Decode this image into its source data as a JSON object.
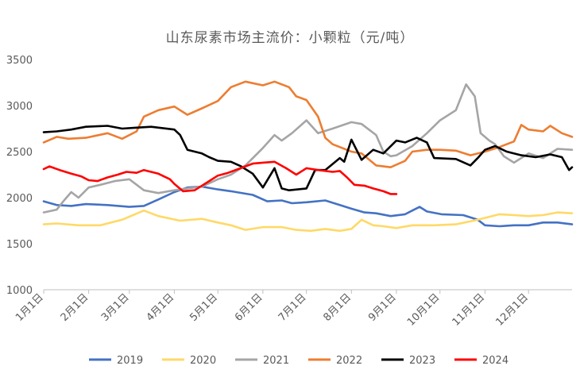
{
  "chart_data": {
    "type": "line",
    "title": "山东尿素市场主流价：小颗粒（元/吨）",
    "xlabel": "",
    "ylabel": "",
    "ylim": [
      1000,
      3500
    ],
    "yticks": [
      1000,
      1500,
      2000,
      2500,
      3000,
      3500
    ],
    "xlim": [
      1,
      365
    ],
    "x_ticks": [
      {
        "label": "1月1日",
        "day": 1
      },
      {
        "label": "2月1日",
        "day": 32
      },
      {
        "label": "3月1日",
        "day": 60
      },
      {
        "label": "4月1日",
        "day": 91
      },
      {
        "label": "5月1日",
        "day": 121
      },
      {
        "label": "6月1日",
        "day": 152
      },
      {
        "label": "7月1日",
        "day": 182
      },
      {
        "label": "8月1日",
        "day": 213
      },
      {
        "label": "9月1日",
        "day": 244
      },
      {
        "label": "10月1日",
        "day": 274
      },
      {
        "label": "11月1日",
        "day": 305
      },
      {
        "label": "12月1日",
        "day": 335
      }
    ],
    "grid": false,
    "legend_position": "bottom",
    "series": [
      {
        "name": "2019",
        "color": "#4472c4",
        "points": [
          [
            1,
            1960
          ],
          [
            10,
            1920
          ],
          [
            20,
            1910
          ],
          [
            30,
            1930
          ],
          [
            45,
            1920
          ],
          [
            60,
            1900
          ],
          [
            70,
            1910
          ],
          [
            80,
            1980
          ],
          [
            91,
            2060
          ],
          [
            100,
            2110
          ],
          [
            110,
            2120
          ],
          [
            121,
            2090
          ],
          [
            130,
            2070
          ],
          [
            145,
            2030
          ],
          [
            155,
            1960
          ],
          [
            165,
            1970
          ],
          [
            172,
            1940
          ],
          [
            182,
            1950
          ],
          [
            195,
            1970
          ],
          [
            205,
            1920
          ],
          [
            213,
            1880
          ],
          [
            222,
            1840
          ],
          [
            230,
            1830
          ],
          [
            240,
            1800
          ],
          [
            250,
            1820
          ],
          [
            255,
            1860
          ],
          [
            260,
            1900
          ],
          [
            265,
            1850
          ],
          [
            275,
            1820
          ],
          [
            290,
            1810
          ],
          [
            300,
            1760
          ],
          [
            305,
            1700
          ],
          [
            315,
            1690
          ],
          [
            325,
            1700
          ],
          [
            335,
            1700
          ],
          [
            345,
            1730
          ],
          [
            355,
            1730
          ],
          [
            365,
            1710
          ]
        ]
      },
      {
        "name": "2020",
        "color": "#ffd966",
        "points": [
          [
            1,
            1710
          ],
          [
            10,
            1720
          ],
          [
            25,
            1700
          ],
          [
            40,
            1700
          ],
          [
            55,
            1760
          ],
          [
            70,
            1860
          ],
          [
            80,
            1800
          ],
          [
            95,
            1750
          ],
          [
            110,
            1770
          ],
          [
            121,
            1730
          ],
          [
            130,
            1700
          ],
          [
            140,
            1650
          ],
          [
            152,
            1680
          ],
          [
            165,
            1680
          ],
          [
            175,
            1650
          ],
          [
            185,
            1640
          ],
          [
            195,
            1660
          ],
          [
            205,
            1640
          ],
          [
            213,
            1660
          ],
          [
            220,
            1760
          ],
          [
            228,
            1700
          ],
          [
            235,
            1690
          ],
          [
            244,
            1670
          ],
          [
            255,
            1700
          ],
          [
            270,
            1700
          ],
          [
            285,
            1710
          ],
          [
            300,
            1760
          ],
          [
            305,
            1780
          ],
          [
            315,
            1820
          ],
          [
            325,
            1810
          ],
          [
            335,
            1800
          ],
          [
            345,
            1810
          ],
          [
            355,
            1840
          ],
          [
            365,
            1830
          ]
        ]
      },
      {
        "name": "2021",
        "color": "#a5a5a5",
        "points": [
          [
            1,
            1840
          ],
          [
            10,
            1870
          ],
          [
            15,
            1970
          ],
          [
            20,
            2060
          ],
          [
            25,
            2000
          ],
          [
            32,
            2110
          ],
          [
            40,
            2140
          ],
          [
            50,
            2180
          ],
          [
            60,
            2200
          ],
          [
            70,
            2080
          ],
          [
            80,
            2050
          ],
          [
            91,
            2080
          ],
          [
            100,
            2100
          ],
          [
            110,
            2120
          ],
          [
            121,
            2200
          ],
          [
            130,
            2250
          ],
          [
            140,
            2350
          ],
          [
            152,
            2540
          ],
          [
            160,
            2680
          ],
          [
            165,
            2620
          ],
          [
            172,
            2700
          ],
          [
            182,
            2840
          ],
          [
            190,
            2700
          ],
          [
            200,
            2750
          ],
          [
            213,
            2820
          ],
          [
            220,
            2800
          ],
          [
            230,
            2680
          ],
          [
            235,
            2500
          ],
          [
            240,
            2450
          ],
          [
            244,
            2460
          ],
          [
            255,
            2560
          ],
          [
            265,
            2700
          ],
          [
            274,
            2840
          ],
          [
            285,
            2950
          ],
          [
            292,
            3230
          ],
          [
            298,
            3100
          ],
          [
            302,
            2700
          ],
          [
            308,
            2620
          ],
          [
            312,
            2580
          ],
          [
            318,
            2450
          ],
          [
            325,
            2380
          ],
          [
            335,
            2480
          ],
          [
            345,
            2430
          ],
          [
            355,
            2530
          ],
          [
            365,
            2520
          ]
        ]
      },
      {
        "name": "2022",
        "color": "#ed7d31",
        "points": [
          [
            1,
            2600
          ],
          [
            10,
            2660
          ],
          [
            18,
            2640
          ],
          [
            30,
            2650
          ],
          [
            45,
            2700
          ],
          [
            55,
            2640
          ],
          [
            65,
            2720
          ],
          [
            70,
            2880
          ],
          [
            80,
            2950
          ],
          [
            91,
            2990
          ],
          [
            100,
            2900
          ],
          [
            110,
            2970
          ],
          [
            121,
            3050
          ],
          [
            130,
            3200
          ],
          [
            140,
            3260
          ],
          [
            152,
            3220
          ],
          [
            160,
            3260
          ],
          [
            170,
            3200
          ],
          [
            175,
            3100
          ],
          [
            182,
            3060
          ],
          [
            190,
            2880
          ],
          [
            195,
            2650
          ],
          [
            200,
            2580
          ],
          [
            213,
            2500
          ],
          [
            220,
            2480
          ],
          [
            230,
            2350
          ],
          [
            240,
            2330
          ],
          [
            250,
            2400
          ],
          [
            255,
            2500
          ],
          [
            265,
            2520
          ],
          [
            274,
            2520
          ],
          [
            285,
            2510
          ],
          [
            295,
            2460
          ],
          [
            305,
            2500
          ],
          [
            315,
            2550
          ],
          [
            325,
            2610
          ],
          [
            330,
            2790
          ],
          [
            335,
            2740
          ],
          [
            345,
            2720
          ],
          [
            350,
            2780
          ],
          [
            358,
            2700
          ],
          [
            365,
            2660
          ]
        ]
      },
      {
        "name": "2023",
        "color": "#000000",
        "points": [
          [
            1,
            2710
          ],
          [
            10,
            2720
          ],
          [
            20,
            2740
          ],
          [
            30,
            2770
          ],
          [
            45,
            2780
          ],
          [
            55,
            2750
          ],
          [
            65,
            2760
          ],
          [
            75,
            2770
          ],
          [
            91,
            2740
          ],
          [
            95,
            2680
          ],
          [
            100,
            2520
          ],
          [
            110,
            2480
          ],
          [
            115,
            2440
          ],
          [
            121,
            2400
          ],
          [
            130,
            2390
          ],
          [
            137,
            2340
          ],
          [
            145,
            2260
          ],
          [
            152,
            2110
          ],
          [
            160,
            2320
          ],
          [
            165,
            2100
          ],
          [
            170,
            2080
          ],
          [
            182,
            2100
          ],
          [
            188,
            2300
          ],
          [
            195,
            2300
          ],
          [
            205,
            2430
          ],
          [
            208,
            2390
          ],
          [
            213,
            2630
          ],
          [
            220,
            2410
          ],
          [
            228,
            2520
          ],
          [
            235,
            2480
          ],
          [
            244,
            2620
          ],
          [
            250,
            2600
          ],
          [
            258,
            2650
          ],
          [
            265,
            2600
          ],
          [
            270,
            2430
          ],
          [
            285,
            2420
          ],
          [
            295,
            2350
          ],
          [
            300,
            2430
          ],
          [
            305,
            2520
          ],
          [
            312,
            2560
          ],
          [
            320,
            2500
          ],
          [
            330,
            2460
          ],
          [
            340,
            2440
          ],
          [
            350,
            2470
          ],
          [
            358,
            2440
          ],
          [
            363,
            2300
          ],
          [
            365,
            2330
          ]
        ]
      },
      {
        "name": "2024",
        "color": "#ff0000",
        "points": [
          [
            1,
            2310
          ],
          [
            5,
            2340
          ],
          [
            12,
            2300
          ],
          [
            20,
            2260
          ],
          [
            27,
            2230
          ],
          [
            32,
            2190
          ],
          [
            38,
            2180
          ],
          [
            45,
            2220
          ],
          [
            52,
            2250
          ],
          [
            58,
            2280
          ],
          [
            65,
            2270
          ],
          [
            70,
            2300
          ],
          [
            80,
            2260
          ],
          [
            88,
            2200
          ],
          [
            91,
            2150
          ],
          [
            97,
            2070
          ],
          [
            105,
            2080
          ],
          [
            112,
            2150
          ],
          [
            121,
            2240
          ],
          [
            128,
            2270
          ],
          [
            135,
            2310
          ],
          [
            145,
            2370
          ],
          [
            152,
            2380
          ],
          [
            160,
            2390
          ],
          [
            168,
            2320
          ],
          [
            175,
            2250
          ],
          [
            182,
            2320
          ],
          [
            190,
            2300
          ],
          [
            200,
            2280
          ],
          [
            205,
            2290
          ],
          [
            210,
            2220
          ],
          [
            215,
            2140
          ],
          [
            222,
            2130
          ],
          [
            228,
            2100
          ],
          [
            235,
            2070
          ],
          [
            240,
            2040
          ],
          [
            244,
            2040
          ]
        ]
      }
    ]
  }
}
